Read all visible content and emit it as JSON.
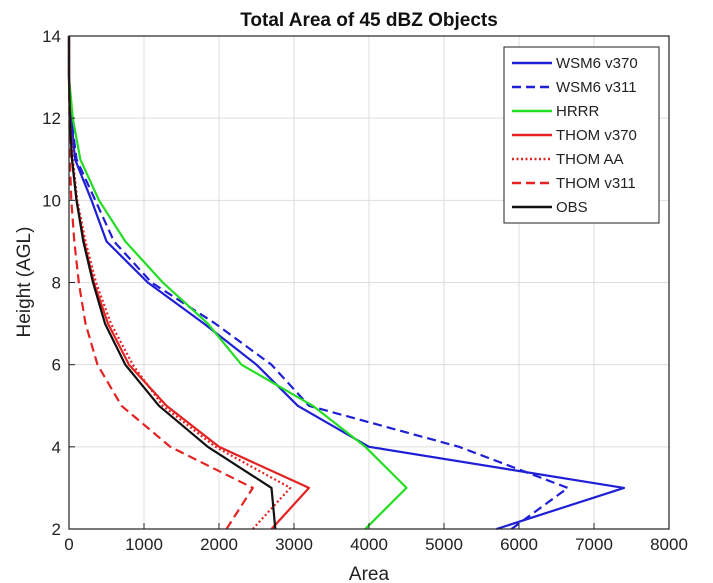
{
  "chart_data": {
    "type": "line",
    "title": "Total Area of 45 dBZ Objects",
    "xlabel": "Area",
    "ylabel": "Height (AGL)",
    "xlim": [
      0,
      8000
    ],
    "ylim": [
      2,
      14
    ],
    "xticks": [
      0,
      1000,
      2000,
      3000,
      4000,
      5000,
      6000,
      7000,
      8000
    ],
    "yticks": [
      2,
      4,
      6,
      8,
      10,
      12,
      14
    ],
    "grid": true,
    "legend_position": "top-right",
    "series": [
      {
        "name": "WSM6 v370",
        "color": "#1f1fd6",
        "dash": "solid",
        "points": [
          [
            5700,
            2
          ],
          [
            7400,
            3
          ],
          [
            4000,
            4
          ],
          [
            3050,
            5
          ],
          [
            2500,
            6
          ],
          [
            1800,
            7
          ],
          [
            1050,
            8
          ],
          [
            500,
            9
          ],
          [
            300,
            10
          ],
          [
            80,
            11
          ],
          [
            30,
            12
          ],
          [
            0,
            13
          ],
          [
            0,
            14
          ]
        ]
      },
      {
        "name": "WSM6 v311",
        "color": "#1f1fd6",
        "dash": "dashed",
        "points": [
          [
            5900,
            2
          ],
          [
            6650,
            3
          ],
          [
            5200,
            4
          ],
          [
            3200,
            5
          ],
          [
            2700,
            6
          ],
          [
            1950,
            7
          ],
          [
            1100,
            8
          ],
          [
            600,
            9
          ],
          [
            350,
            10
          ],
          [
            100,
            11
          ],
          [
            30,
            12
          ],
          [
            0,
            13
          ],
          [
            0,
            14
          ]
        ]
      },
      {
        "name": "HRRR",
        "color": "#22dd22",
        "dash": "solid",
        "points": [
          [
            3950,
            2
          ],
          [
            4500,
            3
          ],
          [
            3950,
            4
          ],
          [
            3250,
            5
          ],
          [
            2300,
            6
          ],
          [
            1850,
            7
          ],
          [
            1250,
            8
          ],
          [
            750,
            9
          ],
          [
            400,
            10
          ],
          [
            150,
            11
          ],
          [
            50,
            12
          ],
          [
            0,
            13
          ],
          [
            0,
            14
          ]
        ]
      },
      {
        "name": "THOM v370",
        "color": "#e52222",
        "dash": "solid",
        "points": [
          [
            2700,
            2
          ],
          [
            3200,
            3
          ],
          [
            2000,
            4
          ],
          [
            1300,
            5
          ],
          [
            800,
            6
          ],
          [
            520,
            7
          ],
          [
            330,
            8
          ],
          [
            200,
            9
          ],
          [
            100,
            10
          ],
          [
            40,
            11
          ],
          [
            10,
            12
          ],
          [
            0,
            13
          ],
          [
            0,
            14
          ]
        ]
      },
      {
        "name": "THOM AA",
        "color": "#e52222",
        "dash": "dotted",
        "points": [
          [
            2450,
            2
          ],
          [
            2950,
            3
          ],
          [
            1950,
            4
          ],
          [
            1250,
            5
          ],
          [
            850,
            6
          ],
          [
            560,
            7
          ],
          [
            360,
            8
          ],
          [
            220,
            9
          ],
          [
            110,
            10
          ],
          [
            50,
            11
          ],
          [
            15,
            12
          ],
          [
            0,
            13
          ],
          [
            0,
            14
          ]
        ]
      },
      {
        "name": "THOM v311",
        "color": "#e52222",
        "dash": "dashed",
        "points": [
          [
            2100,
            2
          ],
          [
            2450,
            3
          ],
          [
            1350,
            4
          ],
          [
            700,
            5
          ],
          [
            380,
            6
          ],
          [
            220,
            7
          ],
          [
            130,
            8
          ],
          [
            70,
            9
          ],
          [
            30,
            10
          ],
          [
            10,
            11
          ],
          [
            5,
            12
          ],
          [
            0,
            13
          ],
          [
            0,
            14
          ]
        ]
      },
      {
        "name": "OBS",
        "color": "#111111",
        "dash": "solid",
        "points": [
          [
            2750,
            2
          ],
          [
            2700,
            3
          ],
          [
            1850,
            4
          ],
          [
            1200,
            5
          ],
          [
            750,
            6
          ],
          [
            480,
            7
          ],
          [
            320,
            8
          ],
          [
            190,
            9
          ],
          [
            100,
            10
          ],
          [
            40,
            11
          ],
          [
            10,
            12
          ],
          [
            0,
            13
          ],
          [
            0,
            14
          ]
        ]
      }
    ]
  }
}
